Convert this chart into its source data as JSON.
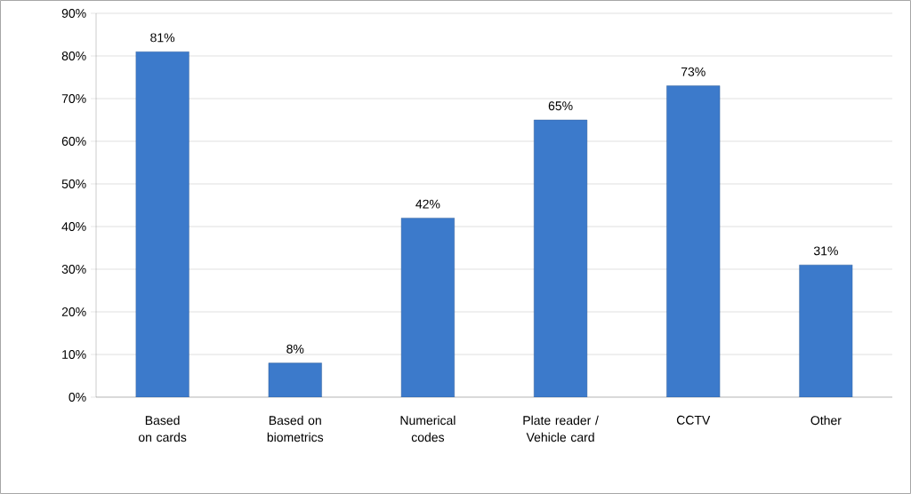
{
  "chart_data": {
    "type": "bar",
    "categories": [
      "Based on cards",
      "Based on biometrics",
      "Numerical codes",
      "Plate reader / Vehicle card",
      "CCTV",
      "Other"
    ],
    "values": [
      81,
      8,
      42,
      65,
      73,
      31
    ],
    "value_labels": [
      "81%",
      "8%",
      "42%",
      "65%",
      "73%",
      "31%"
    ],
    "color": "#3c7acb",
    "ylim": [
      0,
      90
    ],
    "yticks": [
      {
        "value": 0,
        "label": "0%"
      },
      {
        "value": 10,
        "label": "10%"
      },
      {
        "value": 20,
        "label": "20%"
      },
      {
        "value": 30,
        "label": "30%"
      },
      {
        "value": 40,
        "label": "40%"
      },
      {
        "value": 50,
        "label": "50%"
      },
      {
        "value": 60,
        "label": "60%"
      },
      {
        "value": 70,
        "label": "70%"
      },
      {
        "value": 80,
        "label": "80%"
      },
      {
        "value": 90,
        "label": "90%"
      }
    ],
    "grid": "y"
  }
}
